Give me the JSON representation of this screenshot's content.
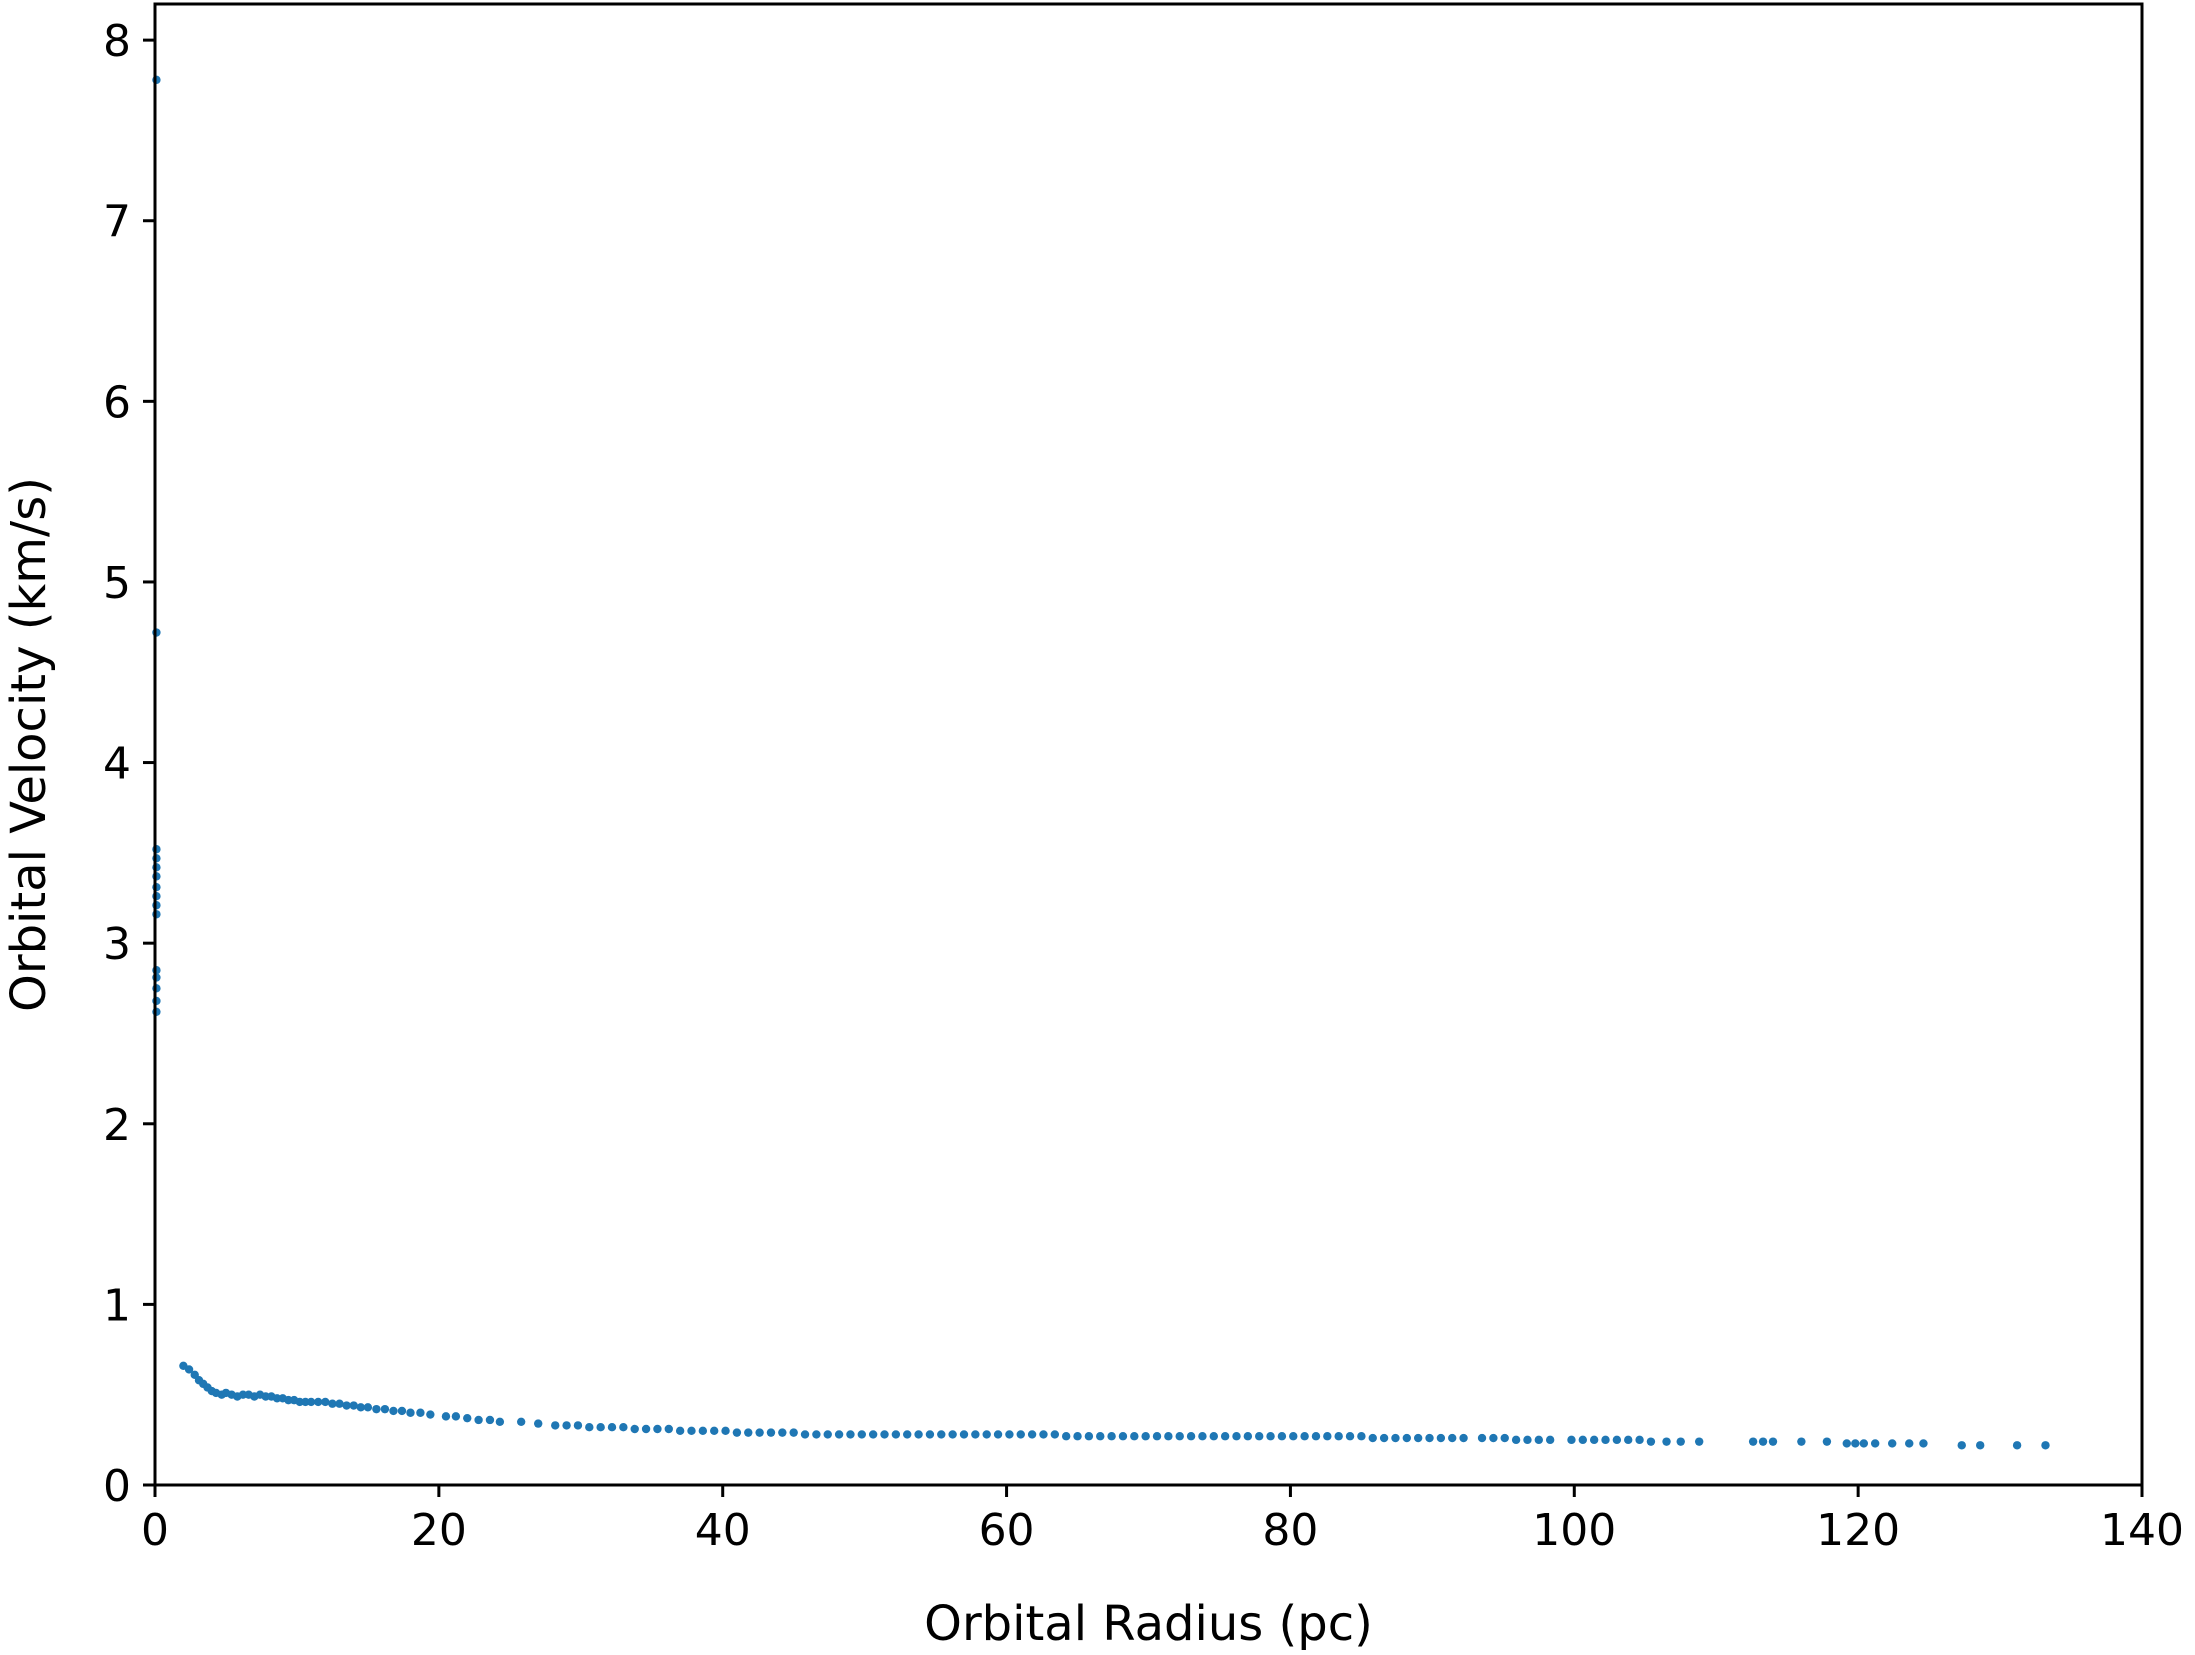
{
  "chart_data": {
    "type": "scatter",
    "title": "",
    "xlabel": "Orbital Radius (pc)",
    "ylabel": "Orbital Velocity (km/s)",
    "xlim": [
      0,
      140
    ],
    "ylim": [
      0,
      8.2
    ],
    "xticks": [
      0,
      20,
      40,
      60,
      80,
      100,
      120,
      140
    ],
    "yticks": [
      0,
      1,
      2,
      3,
      4,
      5,
      6,
      7,
      8
    ],
    "xtick_labels": [
      "0",
      "20",
      "40",
      "60",
      "80",
      "100",
      "120",
      "140"
    ],
    "ytick_labels": [
      "0",
      "1",
      "2",
      "3",
      "4",
      "5",
      "6",
      "7",
      "8"
    ],
    "grid": false,
    "legend": "none",
    "marker_color": "#1f77b4",
    "series": [
      {
        "points": [
          [
            0.1,
            7.78
          ],
          [
            0.1,
            4.72
          ],
          [
            0.1,
            3.52
          ],
          [
            0.1,
            3.47
          ],
          [
            0.1,
            3.42
          ],
          [
            0.1,
            3.37
          ],
          [
            0.1,
            3.31
          ],
          [
            0.1,
            3.26
          ],
          [
            0.1,
            3.21
          ],
          [
            0.1,
            3.16
          ],
          [
            0.1,
            2.85
          ],
          [
            0.1,
            2.81
          ],
          [
            0.1,
            2.75
          ],
          [
            0.1,
            2.68
          ],
          [
            0.1,
            2.62
          ],
          [
            2.0,
            0.66
          ],
          [
            2.4,
            0.64
          ],
          [
            2.8,
            0.61
          ],
          [
            3.1,
            0.58
          ],
          [
            3.4,
            0.56
          ],
          [
            3.7,
            0.54
          ],
          [
            4.0,
            0.52
          ],
          [
            4.3,
            0.51
          ],
          [
            4.7,
            0.5
          ],
          [
            5.0,
            0.51
          ],
          [
            5.4,
            0.5
          ],
          [
            5.8,
            0.49
          ],
          [
            6.2,
            0.5
          ],
          [
            6.6,
            0.5
          ],
          [
            7.0,
            0.49
          ],
          [
            7.4,
            0.5
          ],
          [
            7.8,
            0.49
          ],
          [
            8.2,
            0.49
          ],
          [
            8.6,
            0.48
          ],
          [
            9.0,
            0.48
          ],
          [
            9.4,
            0.47
          ],
          [
            9.8,
            0.47
          ],
          [
            10.2,
            0.46
          ],
          [
            10.6,
            0.46
          ],
          [
            11.0,
            0.46
          ],
          [
            11.5,
            0.46
          ],
          [
            12.0,
            0.46
          ],
          [
            12.5,
            0.45
          ],
          [
            13.0,
            0.45
          ],
          [
            13.5,
            0.44
          ],
          [
            14.0,
            0.44
          ],
          [
            14.5,
            0.43
          ],
          [
            15.0,
            0.43
          ],
          [
            15.6,
            0.42
          ],
          [
            16.2,
            0.42
          ],
          [
            16.8,
            0.41
          ],
          [
            17.4,
            0.41
          ],
          [
            18.0,
            0.4
          ],
          [
            18.7,
            0.4
          ],
          [
            19.4,
            0.39
          ],
          [
            20.5,
            0.38
          ],
          [
            21.2,
            0.38
          ],
          [
            22.0,
            0.37
          ],
          [
            22.8,
            0.36
          ],
          [
            23.6,
            0.36
          ],
          [
            24.3,
            0.35
          ],
          [
            25.8,
            0.35
          ],
          [
            27.0,
            0.34
          ],
          [
            28.2,
            0.33
          ],
          [
            29.0,
            0.33
          ],
          [
            29.8,
            0.33
          ],
          [
            30.6,
            0.32
          ],
          [
            31.4,
            0.32
          ],
          [
            32.2,
            0.32
          ],
          [
            33.0,
            0.32
          ],
          [
            33.8,
            0.31
          ],
          [
            34.6,
            0.31
          ],
          [
            35.4,
            0.31
          ],
          [
            36.2,
            0.31
          ],
          [
            37.0,
            0.3
          ],
          [
            37.8,
            0.3
          ],
          [
            38.6,
            0.3
          ],
          [
            39.4,
            0.3
          ],
          [
            40.2,
            0.3
          ],
          [
            41.0,
            0.29
          ],
          [
            41.8,
            0.29
          ],
          [
            42.6,
            0.29
          ],
          [
            43.4,
            0.29
          ],
          [
            44.2,
            0.29
          ],
          [
            45.0,
            0.29
          ],
          [
            45.8,
            0.28
          ],
          [
            46.6,
            0.28
          ],
          [
            47.4,
            0.28
          ],
          [
            48.2,
            0.28
          ],
          [
            49.0,
            0.28
          ],
          [
            49.8,
            0.28
          ],
          [
            50.6,
            0.28
          ],
          [
            51.4,
            0.28
          ],
          [
            52.2,
            0.28
          ],
          [
            53.0,
            0.28
          ],
          [
            53.8,
            0.28
          ],
          [
            54.6,
            0.28
          ],
          [
            55.4,
            0.28
          ],
          [
            56.2,
            0.28
          ],
          [
            57.0,
            0.28
          ],
          [
            57.8,
            0.28
          ],
          [
            58.6,
            0.28
          ],
          [
            59.4,
            0.28
          ],
          [
            60.2,
            0.28
          ],
          [
            61.0,
            0.28
          ],
          [
            61.8,
            0.28
          ],
          [
            62.6,
            0.28
          ],
          [
            63.4,
            0.28
          ],
          [
            64.2,
            0.27
          ],
          [
            65.0,
            0.27
          ],
          [
            65.8,
            0.27
          ],
          [
            66.6,
            0.27
          ],
          [
            67.4,
            0.27
          ],
          [
            68.2,
            0.27
          ],
          [
            69.0,
            0.27
          ],
          [
            69.8,
            0.27
          ],
          [
            70.6,
            0.27
          ],
          [
            71.4,
            0.27
          ],
          [
            72.2,
            0.27
          ],
          [
            73.0,
            0.27
          ],
          [
            73.8,
            0.27
          ],
          [
            74.6,
            0.27
          ],
          [
            75.4,
            0.27
          ],
          [
            76.2,
            0.27
          ],
          [
            77.0,
            0.27
          ],
          [
            77.8,
            0.27
          ],
          [
            78.6,
            0.27
          ],
          [
            79.4,
            0.27
          ],
          [
            80.2,
            0.27
          ],
          [
            81.0,
            0.27
          ],
          [
            81.8,
            0.27
          ],
          [
            82.6,
            0.27
          ],
          [
            83.4,
            0.27
          ],
          [
            84.2,
            0.27
          ],
          [
            85.0,
            0.27
          ],
          [
            85.8,
            0.26
          ],
          [
            86.6,
            0.26
          ],
          [
            87.4,
            0.26
          ],
          [
            88.2,
            0.26
          ],
          [
            89.0,
            0.26
          ],
          [
            89.8,
            0.26
          ],
          [
            90.6,
            0.26
          ],
          [
            91.4,
            0.26
          ],
          [
            92.2,
            0.26
          ],
          [
            93.5,
            0.26
          ],
          [
            94.3,
            0.26
          ],
          [
            95.1,
            0.26
          ],
          [
            95.9,
            0.25
          ],
          [
            96.7,
            0.25
          ],
          [
            97.5,
            0.25
          ],
          [
            98.3,
            0.25
          ],
          [
            99.8,
            0.25
          ],
          [
            100.6,
            0.25
          ],
          [
            101.4,
            0.25
          ],
          [
            102.2,
            0.25
          ],
          [
            103.0,
            0.25
          ],
          [
            103.8,
            0.25
          ],
          [
            104.6,
            0.25
          ],
          [
            105.4,
            0.24
          ],
          [
            106.5,
            0.24
          ],
          [
            107.5,
            0.24
          ],
          [
            108.8,
            0.24
          ],
          [
            112.6,
            0.24
          ],
          [
            113.3,
            0.24
          ],
          [
            114.0,
            0.24
          ],
          [
            116.0,
            0.24
          ],
          [
            117.8,
            0.24
          ],
          [
            119.2,
            0.23
          ],
          [
            119.8,
            0.23
          ],
          [
            120.4,
            0.23
          ],
          [
            121.2,
            0.23
          ],
          [
            122.4,
            0.23
          ],
          [
            123.6,
            0.23
          ],
          [
            124.6,
            0.23
          ],
          [
            127.3,
            0.22
          ],
          [
            128.6,
            0.22
          ],
          [
            131.2,
            0.22
          ],
          [
            133.2,
            0.22
          ]
        ]
      }
    ]
  }
}
